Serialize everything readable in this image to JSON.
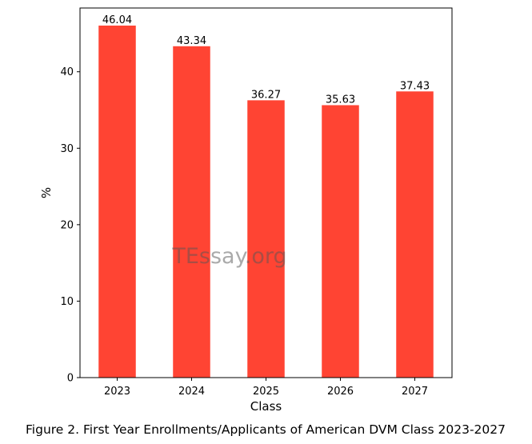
{
  "chart_data": {
    "type": "bar",
    "categories": [
      "2023",
      "2024",
      "2025",
      "2026",
      "2027"
    ],
    "values": [
      46.04,
      43.34,
      36.27,
      35.63,
      37.43
    ],
    "data_labels": [
      "46.04",
      "43.34",
      "36.27",
      "35.63",
      "37.43"
    ],
    "xlabel": "Class",
    "ylabel": "%",
    "ylim": [
      0,
      48.34
    ],
    "yticks": [
      0,
      10,
      20,
      30,
      40
    ],
    "bar_color": "#ff4433",
    "grid": false,
    "legend": "none"
  },
  "watermark": "TEssay.org",
  "caption": "Figure 2. First Year Enrollments/Applicants of American DVM Class 2023-2027"
}
